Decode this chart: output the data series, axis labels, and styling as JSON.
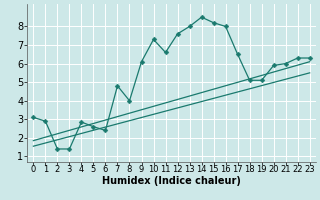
{
  "xlabel": "Humidex (Indice chaleur)",
  "ylabel": "",
  "bg_color": "#cde8e8",
  "grid_color": "#ffffff",
  "line_color": "#1a7a6e",
  "xlim": [
    -0.5,
    23.5
  ],
  "ylim": [
    0.7,
    9.2
  ],
  "xticks": [
    0,
    1,
    2,
    3,
    4,
    5,
    6,
    7,
    8,
    9,
    10,
    11,
    12,
    13,
    14,
    15,
    16,
    17,
    18,
    19,
    20,
    21,
    22,
    23
  ],
  "yticks": [
    1,
    2,
    3,
    4,
    5,
    6,
    7,
    8
  ],
  "curve_x": [
    0,
    1,
    2,
    3,
    4,
    5,
    6,
    7,
    8,
    9,
    10,
    11,
    12,
    13,
    14,
    15,
    16,
    17,
    18,
    19,
    20,
    21,
    22,
    23
  ],
  "curve_y": [
    3.1,
    2.9,
    1.4,
    1.4,
    2.85,
    2.6,
    2.4,
    4.8,
    4.0,
    6.1,
    7.3,
    6.6,
    7.6,
    8.0,
    8.5,
    8.2,
    8.0,
    6.5,
    5.1,
    5.1,
    5.9,
    6.0,
    6.3,
    6.3
  ],
  "trend1_x": [
    0,
    23
  ],
  "trend1_y": [
    1.55,
    5.5
  ],
  "trend2_x": [
    0,
    23
  ],
  "trend2_y": [
    1.85,
    6.1
  ],
  "marker_size": 2.5,
  "linewidth": 0.9,
  "font_size": 6
}
